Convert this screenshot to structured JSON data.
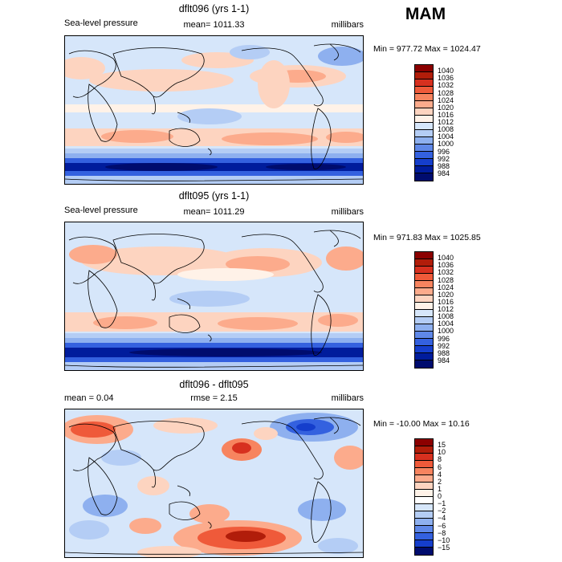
{
  "season": "MAM",
  "panels": [
    {
      "title": "dflt096 (yrs 1-1)",
      "left_label": "Sea-level pressure",
      "mean_label": "mean= 1011.33",
      "units": "millibars",
      "minmax": "Min = 977.72 Max = 1024.47",
      "legend_labels": [
        "1040",
        "1036",
        "1032",
        "1028",
        "1024",
        "1020",
        "1016",
        "1012",
        "1008",
        "1004",
        "1000",
        "996",
        "992",
        "988",
        "984"
      ],
      "colors": [
        "#8b0000",
        "#b11d0a",
        "#d7301f",
        "#ef5a3a",
        "#f7845f",
        "#fcab8c",
        "#fdd4c0",
        "#fff2e8",
        "#d6e6fa",
        "#b4cdf5",
        "#8eb0ef",
        "#5f88e8",
        "#3461df",
        "#153ecc",
        "#001c9c",
        "#000c6e"
      ]
    },
    {
      "title": "dflt095 (yrs 1-1)",
      "left_label": "Sea-level pressure",
      "mean_label": "mean= 1011.29",
      "units": "millibars",
      "minmax": "Min = 971.83 Max = 1025.85",
      "legend_labels": [
        "1040",
        "1036",
        "1032",
        "1028",
        "1024",
        "1020",
        "1016",
        "1012",
        "1008",
        "1004",
        "1000",
        "996",
        "992",
        "988",
        "984"
      ],
      "colors": [
        "#8b0000",
        "#b11d0a",
        "#d7301f",
        "#ef5a3a",
        "#f7845f",
        "#fcab8c",
        "#fdd4c0",
        "#fff2e8",
        "#d6e6fa",
        "#b4cdf5",
        "#8eb0ef",
        "#5f88e8",
        "#3461df",
        "#153ecc",
        "#001c9c",
        "#000c6e"
      ]
    },
    {
      "title": "dflt096 - dflt095",
      "left_label": "mean =    0.04",
      "mean_label": "rmse =    2.15",
      "units": "millibars",
      "minmax": "Min = -10.00 Max =  10.16",
      "legend_labels": [
        "15",
        "10",
        "8",
        "6",
        "4",
        "2",
        "1",
        "0",
        "−1",
        "−2",
        "−4",
        "−6",
        "−8",
        "−10",
        "−15"
      ],
      "colors": [
        "#8b0000",
        "#b11d0a",
        "#d7301f",
        "#ef5a3a",
        "#f7845f",
        "#fcab8c",
        "#fdd4c0",
        "#fff2e8",
        "#ffffff",
        "#d6e6fa",
        "#b4cdf5",
        "#8eb0ef",
        "#5f88e8",
        "#3461df",
        "#153ecc",
        "#000c6e"
      ]
    }
  ]
}
